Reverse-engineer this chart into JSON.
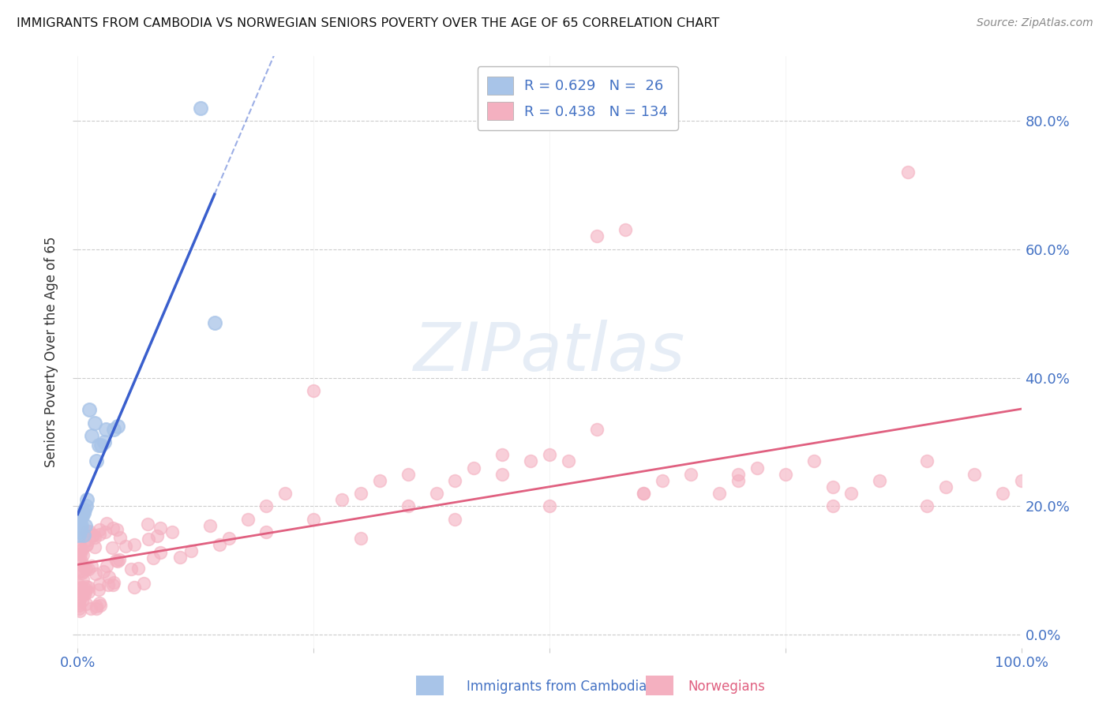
{
  "title": "IMMIGRANTS FROM CAMBODIA VS NORWEGIAN SENIORS POVERTY OVER THE AGE OF 65 CORRELATION CHART",
  "source": "Source: ZipAtlas.com",
  "ylabel": "Seniors Poverty Over the Age of 65",
  "watermark": "ZIPatlas",
  "cambodia_R": 0.629,
  "cambodia_N": 26,
  "cambodia_color": "#a8c4e8",
  "cambodia_line_color": "#3a5fcd",
  "norwegians_R": 0.438,
  "norwegians_N": 134,
  "norwegians_color": "#f4b0c0",
  "norwegians_line_color": "#e06080",
  "xlim": [
    0.0,
    1.0
  ],
  "ylim": [
    -0.02,
    0.9
  ],
  "ytick_vals": [
    0.0,
    0.2,
    0.4,
    0.6,
    0.8
  ],
  "ytick_labels": [
    "0.0%",
    "20.0%",
    "40.0%",
    "60.0%",
    "80.0%"
  ],
  "xtick_vals": [
    0.0,
    0.25,
    0.5,
    0.75,
    1.0
  ],
  "xtick_labels": [
    "0.0%",
    "",
    "",
    "",
    "100.0%"
  ],
  "background_color": "#ffffff",
  "grid_color": "#cccccc",
  "legend_label_cambodia": "Immigrants from Cambodia",
  "legend_label_norwegians": "Norwegians"
}
